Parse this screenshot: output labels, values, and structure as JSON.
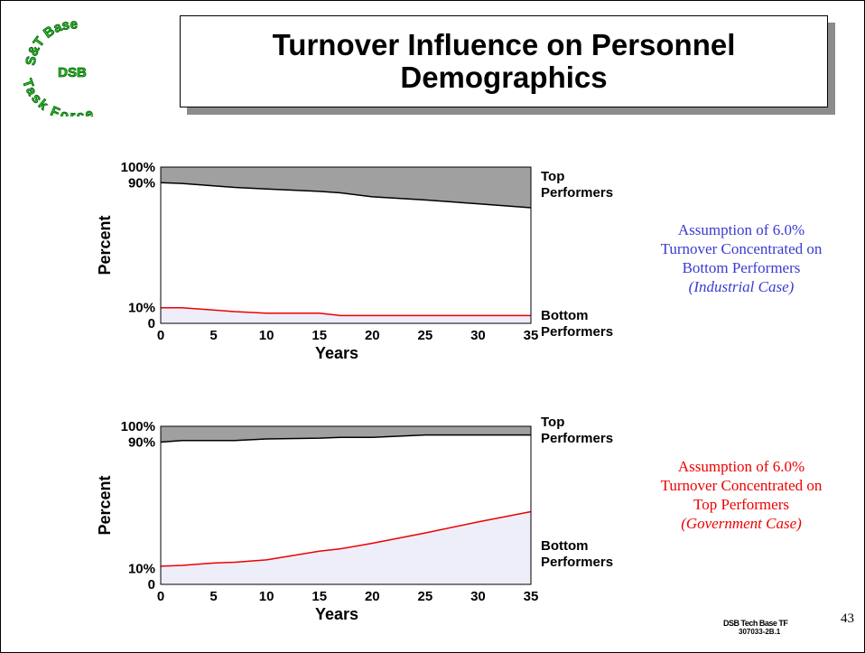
{
  "header": {
    "title": "Turnover Influence on Personnel Demographics",
    "logo_top": "S&T Base",
    "logo_middle": "DSB",
    "logo_bottom": "Task Force"
  },
  "chart_data": [
    {
      "type": "area",
      "x_label": "Years",
      "y_label": "Percent",
      "x": [
        0,
        2,
        5,
        7,
        10,
        15,
        17,
        20,
        25,
        30,
        35
      ],
      "series": [
        {
          "name": "Top Performers",
          "color": "#000000",
          "fill_color": "#a0a0a0",
          "values": [
            90,
            89.5,
            88,
            87,
            86,
            84.5,
            83.5,
            81,
            79,
            76.5,
            74
          ]
        },
        {
          "name": "Bottom Performers",
          "color": "#ee0000",
          "fill_color": "#eeeefa",
          "values": [
            10,
            10,
            8.5,
            7.5,
            6.5,
            6.5,
            5,
            5,
            5,
            5,
            5
          ]
        }
      ],
      "xlim": [
        0,
        35
      ],
      "xticks": [
        0,
        5,
        10,
        15,
        20,
        25,
        30,
        35
      ],
      "ylim": [
        0,
        100
      ],
      "yticks": [
        0,
        {
          "value": 10,
          "label": "10%"
        },
        {
          "value": 90,
          "label": "90%"
        },
        {
          "value": 100,
          "label": "100%"
        }
      ],
      "annotation": {
        "text": "Assumption of 6.0% Turnover Concentrated on Bottom Performers",
        "subtext": "(Industrial Case)",
        "color": "#3a3ad0"
      }
    },
    {
      "type": "area",
      "x_label": "Years",
      "y_label": "Percent",
      "x": [
        0,
        2,
        5,
        7,
        10,
        15,
        17,
        20,
        25,
        30,
        35
      ],
      "series": [
        {
          "name": "Top Performers",
          "color": "#000000",
          "fill_color": "#a0a0a0",
          "values": [
            90,
            91,
            91,
            91,
            92,
            92.5,
            93,
            93,
            94.5,
            94.5,
            94.5
          ]
        },
        {
          "name": "Bottom Performers",
          "color": "#ee0000",
          "fill_color": "#eeeefa",
          "values": [
            11.5,
            12,
            13.5,
            14,
            15.5,
            21,
            22.5,
            26,
            32.5,
            39.5,
            46
          ]
        }
      ],
      "xlim": [
        0,
        35
      ],
      "xticks": [
        0,
        5,
        10,
        15,
        20,
        25,
        30,
        35
      ],
      "ylim": [
        0,
        100
      ],
      "yticks": [
        0,
        {
          "value": 10,
          "label": "10%"
        },
        {
          "value": 90,
          "label": "90%"
        },
        {
          "value": 100,
          "label": "100%"
        }
      ],
      "annotation": {
        "text": "Assumption of 6.0% Turnover Concentrated on Top Performers",
        "subtext": "(Government Case)",
        "color": "#ee0000"
      }
    }
  ],
  "footer": {
    "line1": "DSB Tech Base TF",
    "line2": "307033-2B.1",
    "page": "43"
  }
}
